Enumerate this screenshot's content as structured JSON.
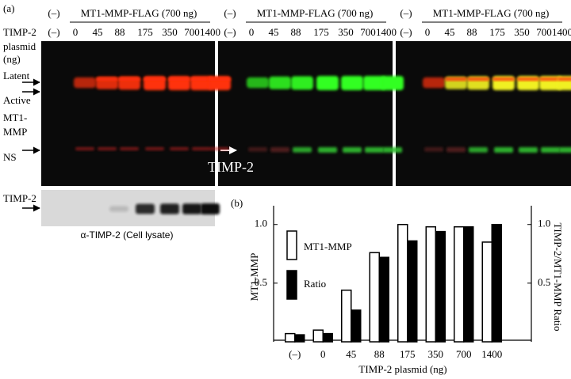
{
  "panel_a": {
    "label": "(a)",
    "lane_headers": [
      {
        "neg": "(–)",
        "construct": "MT1-MMP-FLAG (700 ng)",
        "doses": [
          "(–)",
          "0",
          "45",
          "88",
          "175",
          "350",
          "700",
          "1400"
        ]
      },
      {
        "neg": "(–)",
        "construct": "MT1-MMP-FLAG (700 ng)",
        "doses": [
          "(–)",
          "0",
          "45",
          "88",
          "175",
          "350",
          "700",
          "1400"
        ]
      },
      {
        "neg": "(–)",
        "construct": "MT1-MMP-FLAG (700 ng)",
        "doses": [
          "(–)",
          "0",
          "45",
          "88",
          "175",
          "350",
          "700",
          "1400"
        ]
      }
    ],
    "row_labels": [
      "TIMP-2",
      "plasmid",
      "(ng)",
      "Latent",
      "Active",
      "MT1-",
      "MMP",
      "NS"
    ],
    "overlay_label": "TIMP-2",
    "lysate_label": "TIMP-2",
    "lysate_caption": "α-TIMP-2 (Cell lysate)"
  },
  "panel_b_label": "(b)",
  "chart_data": {
    "type": "bar",
    "categories": [
      "(–)",
      "0",
      "45",
      "88",
      "175",
      "350",
      "700",
      "1400"
    ],
    "x_label": "TIMP-2 plasmid (ng)",
    "y_label": "MT1-MMP",
    "y2_label": "TIMP-2/MT1-MMP Ratio",
    "series": [
      {
        "name": "MT1-MMP",
        "color": "#ffffff",
        "values": [
          0.07,
          0.1,
          0.44,
          0.76,
          1.0,
          0.98,
          0.98,
          0.85
        ]
      },
      {
        "name": "Ratio",
        "color": "#000000",
        "axis": "y2",
        "values": [
          0.06,
          0.07,
          0.27,
          0.72,
          0.86,
          0.94,
          0.98,
          1.0
        ]
      }
    ],
    "ylim": [
      0,
      1.16
    ],
    "yticks": [
      0.5,
      {
        "value": 1,
        "label": "1.0"
      }
    ],
    "y2lim": [
      0,
      1.16
    ],
    "y2ticks": [
      0.5,
      {
        "value": 1,
        "label": "1.0"
      }
    ]
  }
}
